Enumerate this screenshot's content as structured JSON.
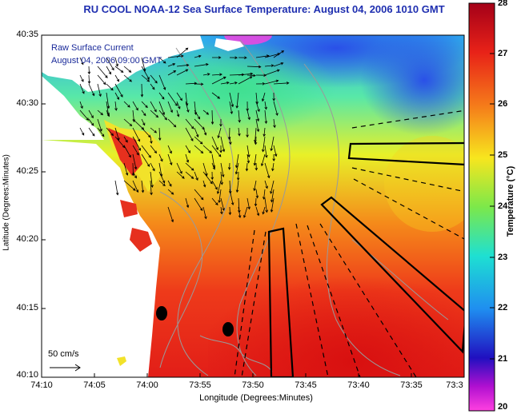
{
  "title": "RU COOL  NOAA-12  Sea Surface Temperature:  August 04, 2006 1010 GMT",
  "overlay": {
    "line1": "Raw Surface Current",
    "line2": "August 04, 2006 09:00 GMT"
  },
  "axes": {
    "ylabel": "Latitude (Degrees:Minutes)",
    "xlabel": "Longitude (Degrees:Minutes)",
    "yticks": [
      "40:35",
      "40:30",
      "40:25",
      "40:20",
      "40:15",
      "40:10"
    ],
    "xticks": [
      "74:10",
      "74:05",
      "74:00",
      "73:55",
      "73:50",
      "73:45",
      "73:40",
      "73:35",
      "73:3"
    ]
  },
  "colorbar": {
    "label": "Temperature (°C)",
    "ticks": [
      "28",
      "27",
      "26",
      "25",
      "24",
      "23",
      "22",
      "21",
      "20"
    ],
    "range": [
      20,
      28
    ]
  },
  "scale": {
    "label": "50 cm/s"
  },
  "colors": {
    "land": "#ffffff",
    "warm": "#e8221c",
    "mid": "#f5e020",
    "cool": "#2a6cf0",
    "title": "#1f2fb0"
  }
}
